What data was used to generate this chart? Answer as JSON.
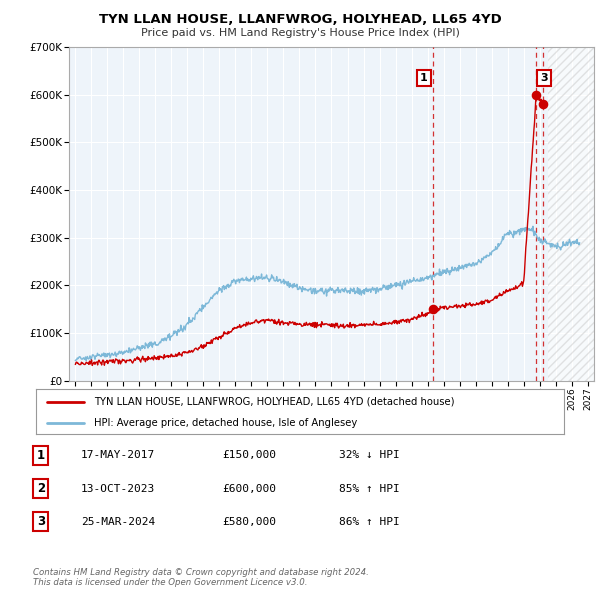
{
  "title": "TYN LLAN HOUSE, LLANFWROG, HOLYHEAD, LL65 4YD",
  "subtitle": "Price paid vs. HM Land Registry's House Price Index (HPI)",
  "legend_line1": "TYN LLAN HOUSE, LLANFWROG, HOLYHEAD, LL65 4YD (detached house)",
  "legend_line2": "HPI: Average price, detached house, Isle of Anglesey",
  "hpi_color": "#7db8d8",
  "price_color": "#cc0000",
  "marker_color": "#cc0000",
  "chart_bg": "#eef4fa",
  "future_hatch_color": "#bbbbbb",
  "footer_text": "Contains HM Land Registry data © Crown copyright and database right 2024.\nThis data is licensed under the Open Government Licence v3.0.",
  "transactions": [
    {
      "num": 1,
      "date": "17-MAY-2017",
      "price": 150000,
      "pct": "32%",
      "dir": "↓",
      "year_x": 2017.37,
      "show_box": true
    },
    {
      "num": 2,
      "date": "13-OCT-2023",
      "price": 600000,
      "pct": "85%",
      "dir": "↑",
      "year_x": 2023.79,
      "show_box": false
    },
    {
      "num": 3,
      "date": "25-MAR-2024",
      "price": 580000,
      "pct": "86%",
      "dir": "↑",
      "year_x": 2024.23,
      "show_box": true
    }
  ],
  "ylim": [
    0,
    700000
  ],
  "xlim_start": 1994.6,
  "xlim_end": 2027.4,
  "future_start": 2024.5,
  "yticks": [
    0,
    100000,
    200000,
    300000,
    400000,
    500000,
    600000,
    700000
  ],
  "ytick_labels": [
    "£0",
    "£100K",
    "£200K",
    "£300K",
    "£400K",
    "£500K",
    "£600K",
    "£700K"
  ],
  "xticks": [
    1995,
    1996,
    1997,
    1998,
    1999,
    2000,
    2001,
    2002,
    2003,
    2004,
    2005,
    2006,
    2007,
    2008,
    2009,
    2010,
    2011,
    2012,
    2013,
    2014,
    2015,
    2016,
    2017,
    2018,
    2019,
    2020,
    2021,
    2022,
    2023,
    2024,
    2025,
    2026,
    2027
  ]
}
